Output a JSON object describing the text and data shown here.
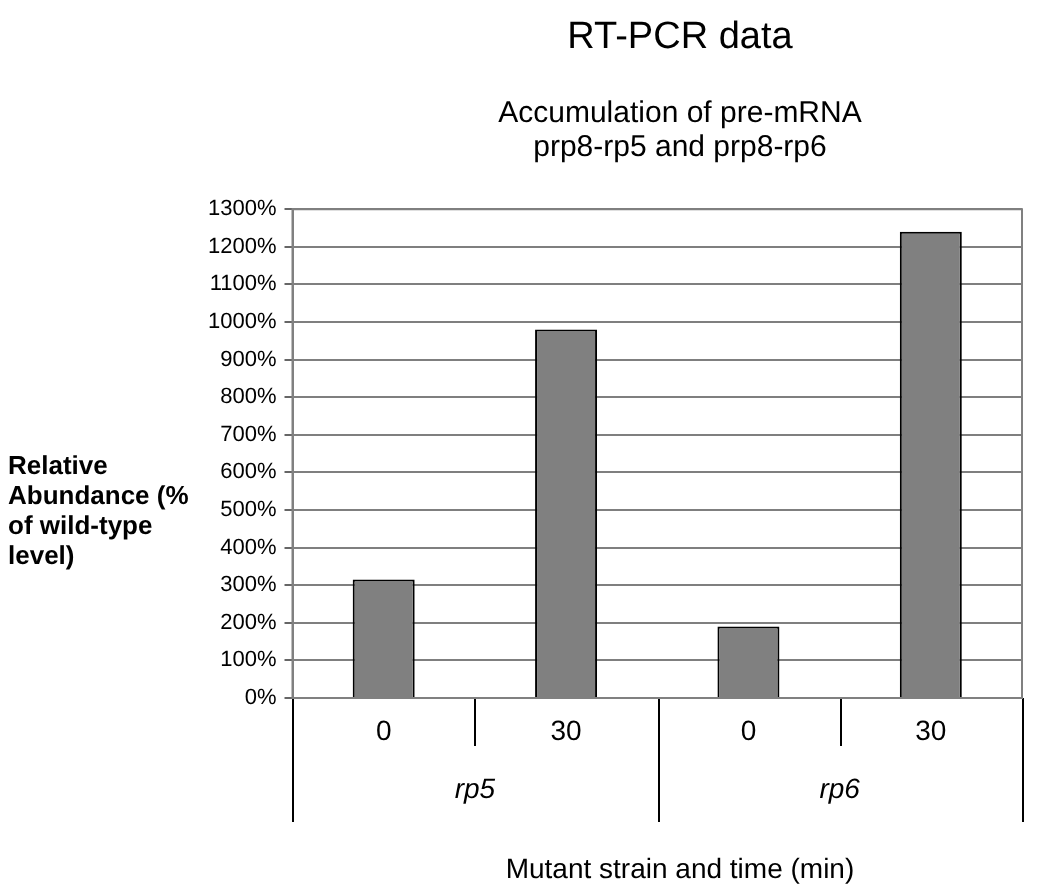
{
  "chart_data": {
    "type": "bar",
    "title": "RT-PCR data",
    "subtitle": "Accumulation of pre-mRNA\nprp8-rp5 and prp8-rp6",
    "xlabel": "Mutant strain and time (min)",
    "ylabel": "Relative Abundance (% of wild-type level)",
    "categories": [
      "0",
      "30",
      "0",
      "30"
    ],
    "values": [
      315,
      980,
      190,
      1240
    ],
    "color": "#808080",
    "annotations": [
      "rp5",
      "rp6"
    ],
    "ylim": [
      0,
      1300
    ],
    "yticks": [
      {
        "value": 0,
        "label": "0%"
      },
      {
        "value": 100,
        "label": "100%"
      },
      {
        "value": 200,
        "label": "200%"
      },
      {
        "value": 300,
        "label": "300%"
      },
      {
        "value": 400,
        "label": "400%"
      },
      {
        "value": 500,
        "label": "500%"
      },
      {
        "value": 600,
        "label": "600%"
      },
      {
        "value": 700,
        "label": "700%"
      },
      {
        "value": 800,
        "label": "800%"
      },
      {
        "value": 900,
        "label": "900%"
      },
      {
        "value": 1000,
        "label": "1000%"
      },
      {
        "value": 1100,
        "label": "1100%"
      },
      {
        "value": 1200,
        "label": "1200%"
      },
      {
        "value": 1300,
        "label": "1300%"
      }
    ],
    "grid": "y"
  }
}
